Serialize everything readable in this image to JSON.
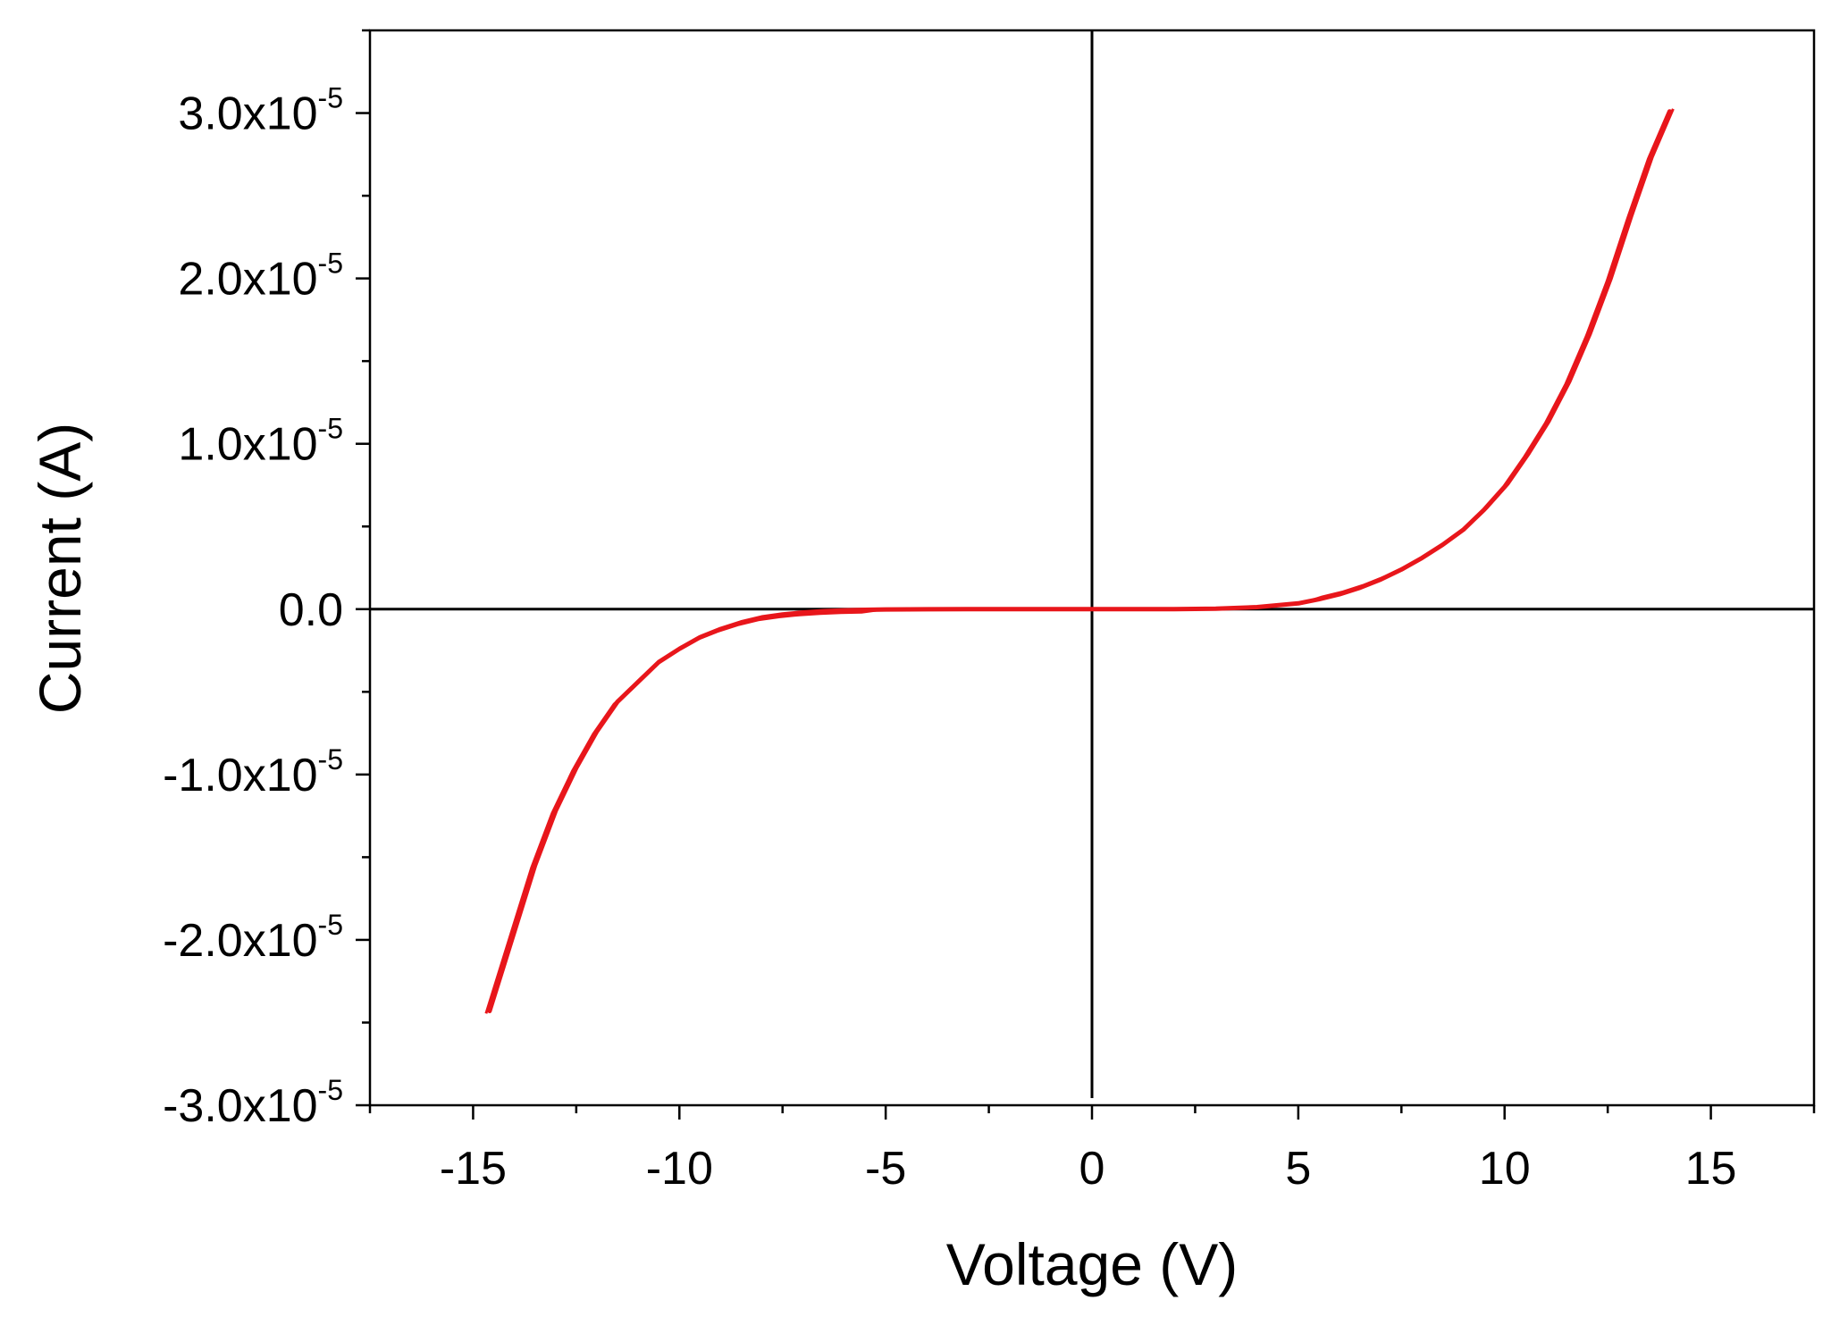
{
  "chart_data": {
    "type": "line",
    "xlabel": "Voltage (V)",
    "ylabel": "Current (A)",
    "xlim": [
      -17.5,
      17.5
    ],
    "ylim": [
      -3e-05,
      3.5e-05
    ],
    "x_ticks": [
      {
        "value": -15,
        "label": "-15"
      },
      {
        "value": -10,
        "label": "-10"
      },
      {
        "value": -5,
        "label": "-5"
      },
      {
        "value": 0,
        "label": "0"
      },
      {
        "value": 5,
        "label": "5"
      },
      {
        "value": 10,
        "label": "10"
      },
      {
        "value": 15,
        "label": "15"
      }
    ],
    "y_ticks": [
      {
        "value": 3e-05,
        "mantissa": "3.0x10",
        "exponent": "-5"
      },
      {
        "value": 2e-05,
        "mantissa": "2.0x10",
        "exponent": "-5"
      },
      {
        "value": 1e-05,
        "mantissa": "1.0x10",
        "exponent": "-5"
      },
      {
        "value": 0,
        "mantissa": "0.0",
        "exponent": ""
      },
      {
        "value": -1e-05,
        "mantissa": "-1.0x10",
        "exponent": "-5"
      },
      {
        "value": -2e-05,
        "mantissa": "-2.0x10",
        "exponent": "-5"
      },
      {
        "value": -3e-05,
        "mantissa": "-3.0x10",
        "exponent": "-5"
      }
    ],
    "zero_lines": true,
    "grid": false,
    "series": [
      {
        "color": "#e8161b",
        "x": [
          -14.6,
          -14.0,
          -13.5,
          -13.0,
          -12.5,
          -12.0,
          -11.5,
          -11.0,
          -10.5,
          -10.0,
          -9.5,
          -9.0,
          -8.5,
          -8.0,
          -7.5,
          -7.0,
          -6.5,
          -6.0,
          -5.5,
          -5.0,
          -4.0,
          -3.0,
          -2.0,
          -1.0,
          0.0,
          1.0,
          2.0,
          3.0,
          4.0,
          5.0,
          5.5,
          6.0,
          6.5,
          7.0,
          7.5,
          8.0,
          8.5,
          9.0,
          9.5,
          10.0,
          10.5,
          11.0,
          11.5,
          12.0,
          12.5,
          13.0,
          13.5,
          14.0
        ],
        "y": [
          -2.43e-05,
          -1.95e-05,
          -1.55e-05,
          -1.22e-05,
          -9.6e-06,
          -7.4e-06,
          -5.6e-06,
          -4.4e-06,
          -3.2e-06,
          -2.4e-06,
          -1.7e-06,
          -1.2e-06,
          -8e-07,
          -5e-07,
          -3.2e-07,
          -2e-07,
          -1.2e-07,
          -7e-08,
          -4e-08,
          -2e-08,
          -8e-09,
          -3e-09,
          -1e-09,
          0,
          0,
          0,
          1e-09,
          3e-08,
          1.2e-07,
          3.5e-07,
          6e-07,
          9e-07,
          1.3e-06,
          1.8e-06,
          2.4e-06,
          3.1e-06,
          3.9e-06,
          4.8e-06,
          6e-06,
          7.4e-06,
          9.2e-06,
          1.12e-05,
          1.36e-05,
          1.65e-05,
          1.98e-05,
          2.36e-05,
          2.72e-05,
          3.01e-05
        ]
      }
    ]
  }
}
